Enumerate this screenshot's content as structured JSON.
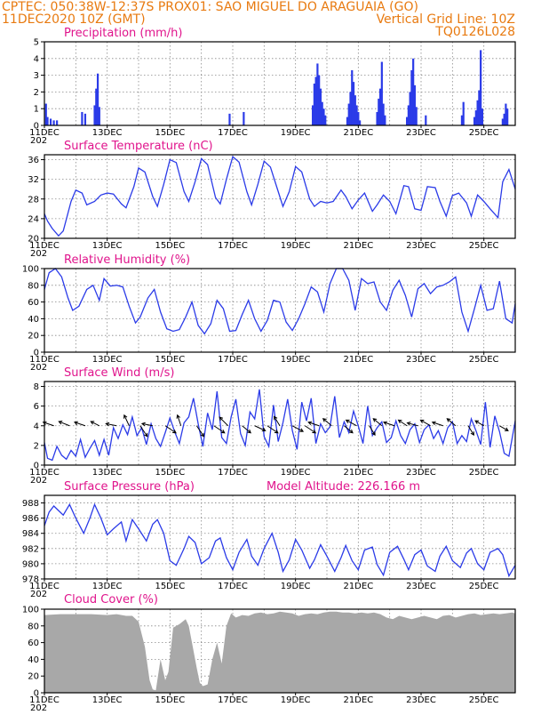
{
  "header": {
    "line1": "CPTEC:   050:38W-12:37S   PROX01: SAO MIGUEL DO ARAGUAIA (GO)",
    "line2_left": "11DEC2020 10Z (GMT)",
    "line2_right": "Vertical Grid Line: 10Z",
    "line3_right": "TQ0126L028",
    "model_altitude": "Model Altitude: 226.166  m"
  },
  "x_tick_labels": [
    "11DEC",
    "13DEC",
    "15DEC",
    "17DEC",
    "19DEC",
    "21DEC",
    "23DEC",
    "25DEC"
  ],
  "x_year_label": "202",
  "colors": {
    "header": "#e87a10",
    "title": "#e0148c",
    "series": "#2b3be8",
    "cloud": "#a8a8a8"
  },
  "chart_data": [
    {
      "id": "precip",
      "type": "bar",
      "title": "Precipitation  (mm/h)",
      "ylim": [
        0,
        5
      ],
      "yticks": [
        "0",
        "1",
        "2",
        "3",
        "4",
        "5"
      ],
      "x_range_days": [
        11.0,
        26.0
      ],
      "x": [
        11.05,
        11.1,
        11.2,
        11.3,
        11.4,
        12.2,
        12.3,
        12.6,
        12.65,
        12.7,
        12.75,
        16.9,
        17.35,
        19.55,
        19.6,
        19.65,
        19.7,
        19.75,
        19.8,
        19.85,
        19.9,
        19.95,
        20.65,
        20.7,
        20.75,
        20.8,
        20.85,
        20.9,
        20.95,
        21.0,
        21.05,
        21.6,
        21.65,
        21.7,
        21.75,
        21.8,
        21.85,
        22.55,
        22.6,
        22.65,
        22.7,
        22.75,
        22.8,
        22.85,
        23.15,
        24.3,
        24.35,
        24.7,
        24.75,
        24.8,
        24.85,
        24.9,
        24.95,
        25.6,
        25.65,
        25.7,
        25.75
      ],
      "values": [
        1.3,
        0.5,
        0.4,
        0.3,
        0.3,
        0.8,
        0.7,
        1.2,
        2.2,
        3.1,
        1.1,
        0.7,
        0.8,
        1.2,
        2.5,
        2.9,
        3.7,
        3.0,
        2.2,
        1.4,
        1.0,
        0.6,
        0.5,
        1.3,
        2.0,
        3.3,
        2.6,
        1.8,
        1.2,
        0.8,
        0.3,
        0.8,
        1.6,
        2.2,
        3.8,
        1.3,
        0.6,
        0.5,
        1.2,
        2.0,
        3.3,
        4.0,
        2.4,
        1.1,
        0.6,
        0.6,
        1.4,
        0.5,
        0.9,
        1.5,
        2.1,
        4.5,
        1.0,
        0.4,
        0.7,
        1.3,
        1.0
      ]
    },
    {
      "id": "temp",
      "type": "line",
      "title": "Surface Temperature (nC)",
      "ylim": [
        20,
        37
      ],
      "yticks": [
        "20",
        "24",
        "28",
        "32",
        "36"
      ],
      "x_range_days": [
        11.0,
        26.0
      ],
      "x": [
        11.0,
        11.1,
        11.25,
        11.45,
        11.6,
        11.85,
        12.0,
        12.2,
        12.35,
        12.6,
        12.8,
        13.0,
        13.2,
        13.45,
        13.6,
        13.85,
        14.0,
        14.2,
        14.45,
        14.6,
        14.8,
        15.0,
        15.2,
        15.45,
        15.6,
        15.8,
        16.0,
        16.2,
        16.45,
        16.6,
        16.8,
        17.0,
        17.2,
        17.45,
        17.6,
        17.8,
        18.0,
        18.2,
        18.45,
        18.6,
        18.8,
        19.0,
        19.2,
        19.45,
        19.6,
        19.8,
        20.0,
        20.2,
        20.45,
        20.6,
        20.8,
        21.0,
        21.2,
        21.45,
        21.6,
        21.8,
        22.0,
        22.2,
        22.45,
        22.6,
        22.8,
        23.0,
        23.2,
        23.45,
        23.6,
        23.8,
        24.0,
        24.2,
        24.45,
        24.6,
        24.8,
        25.0,
        25.2,
        25.45,
        25.6,
        25.8,
        26.0
      ],
      "values": [
        25,
        23.5,
        22,
        20.5,
        21.5,
        27.5,
        29.8,
        29.2,
        26.8,
        27.5,
        28.8,
        29.2,
        29.0,
        27.0,
        26.2,
        30.5,
        34.3,
        33.5,
        28.5,
        26.5,
        31.0,
        36.0,
        35.4,
        29.5,
        27.5,
        31.5,
        36.2,
        35.0,
        28.3,
        27.0,
        32.0,
        36.6,
        35.5,
        29.5,
        26.8,
        31.0,
        35.7,
        34.5,
        29.5,
        26.5,
        29.5,
        34.6,
        33.5,
        28.0,
        26.5,
        27.5,
        27.2,
        27.5,
        29.8,
        28.5,
        26.0,
        27.8,
        29.2,
        25.5,
        26.8,
        28.8,
        27.5,
        25.0,
        30.7,
        30.5,
        26.0,
        25.7,
        30.5,
        30.3,
        27.5,
        24.5,
        28.7,
        29.2,
        27.2,
        24.5,
        28.8,
        27.5,
        26.0,
        24.2,
        31.5,
        34.0,
        30.0
      ]
    },
    {
      "id": "rh",
      "type": "line",
      "title": "Relative Humidity (%)",
      "ylim": [
        0,
        100
      ],
      "yticks": [
        "0",
        "20",
        "40",
        "60",
        "80",
        "100"
      ],
      "x_range_days": [
        11.0,
        26.0
      ],
      "x": [
        11.0,
        11.15,
        11.35,
        11.55,
        11.75,
        11.9,
        12.1,
        12.35,
        12.55,
        12.75,
        12.9,
        13.1,
        13.3,
        13.5,
        13.7,
        13.9,
        14.05,
        14.3,
        14.5,
        14.7,
        14.9,
        15.1,
        15.3,
        15.5,
        15.7,
        15.9,
        16.1,
        16.3,
        16.5,
        16.7,
        16.9,
        17.1,
        17.3,
        17.5,
        17.7,
        17.9,
        18.1,
        18.3,
        18.5,
        18.7,
        18.9,
        19.1,
        19.3,
        19.5,
        19.7,
        19.9,
        20.1,
        20.3,
        20.5,
        20.7,
        20.9,
        21.1,
        21.3,
        21.5,
        21.7,
        21.9,
        22.1,
        22.3,
        22.5,
        22.7,
        22.9,
        23.1,
        23.3,
        23.5,
        23.7,
        23.9,
        24.1,
        24.3,
        24.5,
        24.7,
        24.9,
        25.1,
        25.3,
        25.5,
        25.7,
        25.9,
        26.0
      ],
      "values": [
        75,
        95,
        100,
        90,
        65,
        50,
        55,
        75,
        80,
        62,
        88,
        79,
        80,
        78,
        55,
        35,
        42,
        65,
        75,
        48,
        28,
        25,
        27,
        42,
        60,
        32,
        22,
        34,
        62,
        52,
        25,
        26,
        45,
        62,
        40,
        25,
        38,
        62,
        60,
        36,
        26,
        40,
        58,
        78,
        72,
        48,
        82,
        100,
        100,
        86,
        50,
        88,
        82,
        84,
        60,
        50,
        74,
        86,
        68,
        42,
        76,
        82,
        70,
        78,
        80,
        84,
        90,
        48,
        25,
        52,
        80,
        50,
        52,
        85,
        40,
        35,
        58
      ]
    },
    {
      "id": "wind",
      "type": "line",
      "title": "Surface Wind (m/s)",
      "ylim": [
        0,
        8.5
      ],
      "yticks": [
        "0",
        "2",
        "4",
        "6",
        "8"
      ],
      "x_range_days": [
        11.0,
        26.0
      ],
      "x": [
        11.0,
        11.1,
        11.25,
        11.4,
        11.55,
        11.7,
        11.85,
        12.0,
        12.15,
        12.3,
        12.45,
        12.6,
        12.75,
        12.9,
        13.05,
        13.2,
        13.35,
        13.5,
        13.65,
        13.8,
        13.95,
        14.1,
        14.25,
        14.4,
        14.55,
        14.7,
        14.85,
        15.0,
        15.15,
        15.3,
        15.45,
        15.6,
        15.75,
        15.9,
        16.05,
        16.2,
        16.35,
        16.5,
        16.65,
        16.8,
        16.95,
        17.1,
        17.25,
        17.4,
        17.55,
        17.7,
        17.85,
        18.0,
        18.15,
        18.3,
        18.45,
        18.6,
        18.75,
        18.9,
        19.05,
        19.2,
        19.35,
        19.5,
        19.65,
        19.8,
        19.95,
        20.1,
        20.25,
        20.4,
        20.55,
        20.7,
        20.85,
        21.0,
        21.15,
        21.3,
        21.45,
        21.6,
        21.75,
        21.9,
        22.05,
        22.2,
        22.35,
        22.5,
        22.65,
        22.8,
        22.95,
        23.1,
        23.25,
        23.4,
        23.55,
        23.7,
        23.85,
        24.0,
        24.15,
        24.3,
        24.45,
        24.6,
        24.75,
        24.9,
        25.05,
        25.2,
        25.35,
        25.5,
        25.65,
        25.8,
        26.0
      ],
      "values": [
        2.3,
        0.7,
        0.5,
        1.9,
        1.0,
        0.6,
        1.5,
        0.9,
        2.6,
        0.8,
        1.7,
        2.5,
        1.0,
        2.6,
        1.0,
        3.8,
        2.7,
        4.1,
        3.1,
        4.9,
        3.0,
        3.8,
        2.1,
        4.2,
        2.7,
        1.9,
        3.3,
        4.8,
        3.4,
        2.2,
        4.3,
        4.9,
        6.8,
        4.2,
        1.9,
        5.3,
        3.6,
        7.5,
        2.8,
        2.2,
        4.9,
        6.7,
        3.2,
        2.0,
        5.4,
        4.7,
        7.7,
        2.9,
        1.9,
        6.1,
        2.4,
        4.3,
        6.7,
        3.5,
        1.6,
        6.4,
        4.5,
        6.8,
        2.2,
        4.2,
        3.3,
        3.9,
        7.0,
        2.8,
        4.4,
        3.3,
        5.5,
        4.0,
        2.2,
        6.0,
        3.0,
        3.8,
        4.4,
        2.3,
        2.8,
        4.5,
        3.0,
        2.2,
        3.6,
        4.2,
        2.3,
        3.6,
        4.1,
        2.7,
        3.5,
        2.2,
        3.8,
        4.4,
        2.2,
        3.0,
        2.4,
        4.7,
        3.5,
        2.1,
        6.4,
        1.8,
        5.0,
        3.4,
        1.2,
        0.9,
        4.5
      ]
    },
    {
      "id": "pressure",
      "type": "line",
      "title": "Surface Pressure (hPa)",
      "ylim": [
        978,
        989
      ],
      "yticks": [
        "978",
        "980",
        "982",
        "984",
        "986",
        "988"
      ],
      "x_range_days": [
        11.0,
        26.0
      ],
      "x": [
        11.0,
        11.15,
        11.3,
        11.45,
        11.6,
        11.8,
        12.0,
        12.25,
        12.45,
        12.6,
        12.8,
        13.0,
        13.2,
        13.45,
        13.6,
        13.8,
        14.0,
        14.25,
        14.45,
        14.6,
        14.8,
        15.0,
        15.2,
        15.45,
        15.6,
        15.8,
        16.0,
        16.25,
        16.45,
        16.6,
        16.8,
        17.0,
        17.2,
        17.45,
        17.6,
        17.8,
        18.0,
        18.25,
        18.45,
        18.6,
        18.8,
        19.0,
        19.2,
        19.45,
        19.6,
        19.8,
        20.0,
        20.25,
        20.45,
        20.6,
        20.8,
        21.0,
        21.2,
        21.45,
        21.6,
        21.8,
        22.0,
        22.25,
        22.45,
        22.6,
        22.8,
        23.0,
        23.2,
        23.45,
        23.6,
        23.8,
        24.0,
        24.25,
        24.45,
        24.6,
        24.8,
        25.0,
        25.2,
        25.45,
        25.6,
        25.8,
        26.0
      ],
      "values": [
        985.0,
        986.8,
        987.6,
        987.0,
        986.4,
        987.8,
        986.0,
        984.0,
        986.0,
        987.8,
        986.0,
        983.8,
        984.6,
        985.5,
        983.0,
        985.8,
        984.6,
        983.0,
        985.2,
        985.8,
        984.0,
        980.4,
        979.8,
        982.0,
        983.6,
        982.8,
        980.0,
        980.8,
        983.0,
        983.4,
        980.8,
        979.2,
        981.5,
        983.2,
        981.0,
        979.8,
        982.0,
        984.0,
        981.5,
        979.0,
        980.5,
        983.2,
        981.8,
        979.4,
        980.5,
        982.5,
        981.0,
        979.0,
        980.8,
        982.4,
        980.4,
        979.2,
        981.8,
        982.2,
        979.9,
        978.5,
        981.5,
        982.3,
        980.6,
        979.2,
        981.2,
        981.8,
        979.7,
        979.0,
        981.0,
        982.3,
        980.4,
        979.5,
        981.4,
        982.0,
        980.0,
        979.2,
        981.5,
        982.0,
        981.2,
        978.4,
        979.8
      ]
    },
    {
      "id": "cloud",
      "type": "area",
      "title": "Cloud Cover (%)",
      "ylim": [
        0,
        100
      ],
      "yticks": [
        "0",
        "20",
        "40",
        "60",
        "80",
        "100"
      ],
      "x_range_days": [
        11.0,
        26.0
      ],
      "x": [
        11.0,
        11.5,
        12.0,
        12.5,
        13.0,
        13.3,
        13.6,
        13.8,
        14.0,
        14.2,
        14.35,
        14.45,
        14.55,
        14.7,
        14.85,
        14.95,
        15.1,
        15.3,
        15.5,
        15.6,
        15.7,
        15.85,
        15.95,
        16.05,
        16.2,
        16.35,
        16.5,
        16.65,
        16.8,
        16.95,
        17.1,
        17.3,
        17.5,
        17.7,
        17.9,
        18.1,
        18.3,
        18.5,
        18.7,
        18.9,
        19.1,
        19.3,
        19.5,
        19.7,
        19.9,
        20.1,
        20.3,
        20.5,
        20.7,
        20.9,
        21.1,
        21.3,
        21.5,
        21.7,
        21.9,
        22.1,
        22.3,
        22.5,
        22.7,
        22.9,
        23.1,
        23.3,
        23.5,
        23.7,
        23.9,
        24.1,
        24.3,
        24.5,
        24.7,
        24.9,
        25.1,
        25.3,
        25.5,
        25.7,
        25.9,
        26.0
      ],
      "values": [
        93,
        94,
        94,
        94,
        93,
        94,
        92,
        92,
        85,
        55,
        15,
        4,
        3,
        40,
        15,
        25,
        78,
        82,
        88,
        80,
        60,
        30,
        12,
        8,
        10,
        40,
        60,
        35,
        80,
        95,
        90,
        93,
        92,
        95,
        96,
        94,
        95,
        97,
        96,
        95,
        92,
        94,
        95,
        94,
        96,
        97,
        97,
        96,
        96,
        95,
        96,
        95,
        96,
        94,
        90,
        88,
        92,
        90,
        88,
        90,
        92,
        90,
        88,
        92,
        93,
        90,
        92,
        94,
        95,
        93,
        94,
        95,
        94,
        95,
        96,
        95
      ]
    }
  ],
  "wind_vectors": {
    "x": [
      11.3,
      11.8,
      12.3,
      12.75,
      13.3,
      13.7,
      14.05,
      14.45,
      14.85,
      15.35,
      15.85,
      16.4,
      16.85,
      17.3,
      17.7,
      18.1,
      18.5,
      18.9,
      19.3,
      19.75,
      20.15,
      20.55,
      20.95,
      21.35,
      21.75,
      22.15,
      22.55,
      22.9,
      23.3,
      23.7,
      24.1,
      24.5,
      25.0,
      25.5
    ],
    "u": [
      -1.5,
      -1.5,
      -1.5,
      -1.2,
      -1.5,
      -0.7,
      1.0,
      -1.5,
      1.5,
      -0.5,
      1.0,
      1.5,
      -1.2,
      1.2,
      1.5,
      1.5,
      -0.8,
      1.5,
      1.5,
      -1.5,
      -1.2,
      1.2,
      -1.5,
      0.8,
      -1.2,
      -1.5,
      -1.2,
      -1.5,
      -1.4,
      -1.5,
      -1.2,
      0.8,
      -1.2,
      1.2
    ],
    "v": [
      0.5,
      0.6,
      0.5,
      0.6,
      0.3,
      1.5,
      -1.5,
      0.3,
      -1.0,
      1.5,
      -1.5,
      -1.0,
      1.2,
      -1.0,
      -0.7,
      -1.0,
      1.3,
      -0.8,
      -1.0,
      0.5,
      1.0,
      -1.0,
      0.8,
      -1.3,
      1.0,
      0.5,
      0.8,
      0.4,
      0.8,
      0.5,
      1.0,
      -1.3,
      0.7,
      -0.7
    ]
  }
}
